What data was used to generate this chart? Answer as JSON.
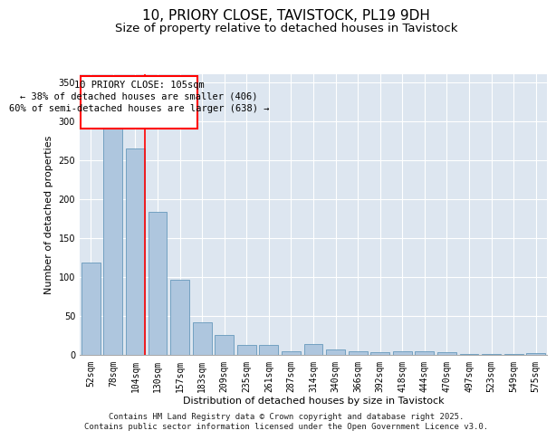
{
  "title_line1": "10, PRIORY CLOSE, TAVISTOCK, PL19 9DH",
  "title_line2": "Size of property relative to detached houses in Tavistock",
  "xlabel": "Distribution of detached houses by size in Tavistock",
  "ylabel": "Number of detached properties",
  "bar_color": "#aec6de",
  "bar_edge_color": "#6699bb",
  "background_color": "#dde6f0",
  "categories": [
    "52sqm",
    "78sqm",
    "104sqm",
    "130sqm",
    "157sqm",
    "183sqm",
    "209sqm",
    "235sqm",
    "261sqm",
    "287sqm",
    "314sqm",
    "340sqm",
    "366sqm",
    "392sqm",
    "418sqm",
    "444sqm",
    "470sqm",
    "497sqm",
    "523sqm",
    "549sqm",
    "575sqm"
  ],
  "values": [
    118,
    290,
    265,
    183,
    96,
    42,
    25,
    13,
    13,
    5,
    14,
    7,
    5,
    3,
    5,
    5,
    3,
    1,
    1,
    1,
    2
  ],
  "ylim": [
    0,
    360
  ],
  "yticks": [
    0,
    50,
    100,
    150,
    200,
    250,
    300,
    350
  ],
  "annotation_text": "10 PRIORY CLOSE: 105sqm\n← 38% of detached houses are smaller (406)\n60% of semi-detached houses are larger (638) →",
  "red_line_bar_index": 2,
  "footer_line1": "Contains HM Land Registry data © Crown copyright and database right 2025.",
  "footer_line2": "Contains public sector information licensed under the Open Government Licence v3.0.",
  "title_fontsize": 11,
  "subtitle_fontsize": 9.5,
  "axis_label_fontsize": 8,
  "tick_fontsize": 7,
  "annotation_fontsize": 7.5,
  "footer_fontsize": 6.5
}
